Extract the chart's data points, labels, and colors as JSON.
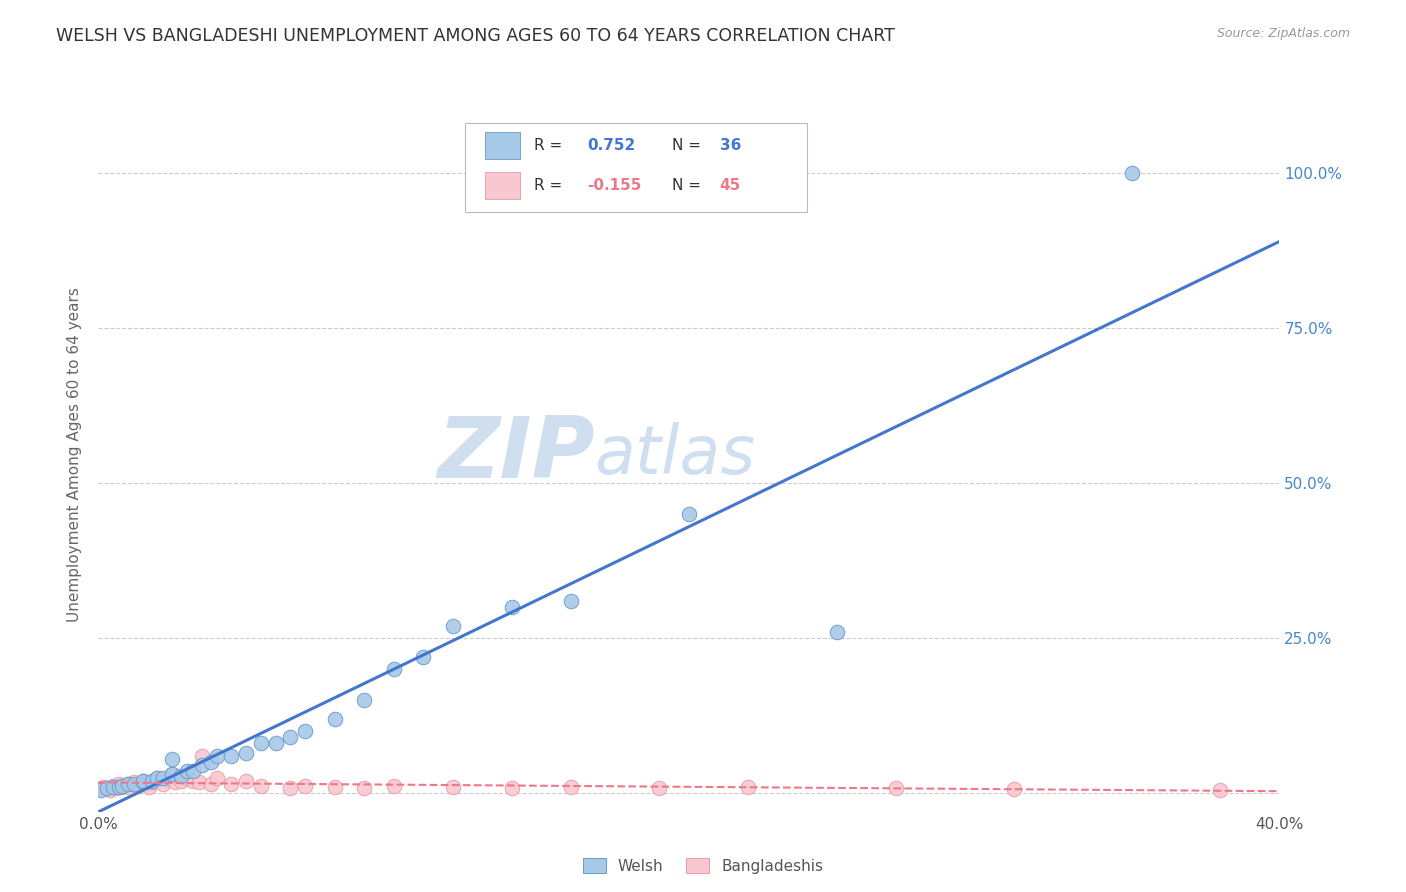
{
  "title": "WELSH VS BANGLADESHI UNEMPLOYMENT AMONG AGES 60 TO 64 YEARS CORRELATION CHART",
  "source": "Source: ZipAtlas.com",
  "ylabel": "Unemployment Among Ages 60 to 64 years",
  "xlim": [
    0.0,
    0.4
  ],
  "ylim": [
    -0.03,
    1.12
  ],
  "xticks": [
    0.0,
    0.1,
    0.2,
    0.3,
    0.4
  ],
  "xtick_labels": [
    "0.0%",
    "",
    "",
    "",
    "40.0%"
  ],
  "yticks": [
    0.0,
    0.25,
    0.5,
    0.75,
    1.0
  ],
  "ytick_labels": [
    "",
    "25.0%",
    "50.0%",
    "75.0%",
    "100.0%"
  ],
  "welsh_color": "#a8c8e8",
  "welsh_edge_color": "#6699cc",
  "bangladeshi_color": "#f8c8d0",
  "bangladeshi_edge_color": "#e899aa",
  "welsh_R": 0.752,
  "welsh_N": 36,
  "bangladeshi_R": -0.155,
  "bangladeshi_N": 45,
  "welsh_line_color": "#4477cc",
  "bangladeshi_line_color": "#ee7788",
  "watermark_top": "ZIP",
  "watermark_bot": "atlas",
  "watermark_color": "#d0dff0",
  "background_color": "#ffffff",
  "grid_color": "#cccccc",
  "right_label_color": "#4488cc",
  "title_color": "#333333",
  "welsh_x": [
    0.001,
    0.003,
    0.005,
    0.007,
    0.008,
    0.01,
    0.012,
    0.015,
    0.015,
    0.018,
    0.02,
    0.022,
    0.025,
    0.025,
    0.028,
    0.03,
    0.032,
    0.035,
    0.038,
    0.04,
    0.045,
    0.05,
    0.055,
    0.06,
    0.065,
    0.07,
    0.08,
    0.09,
    0.1,
    0.11,
    0.12,
    0.14,
    0.16,
    0.2,
    0.25,
    0.35
  ],
  "welsh_y": [
    0.005,
    0.008,
    0.01,
    0.01,
    0.012,
    0.015,
    0.015,
    0.018,
    0.02,
    0.02,
    0.025,
    0.025,
    0.03,
    0.055,
    0.028,
    0.035,
    0.035,
    0.045,
    0.05,
    0.06,
    0.06,
    0.065,
    0.08,
    0.08,
    0.09,
    0.1,
    0.12,
    0.15,
    0.2,
    0.22,
    0.27,
    0.3,
    0.31,
    0.45,
    0.26,
    1.0
  ],
  "bangladeshi_x": [
    0.001,
    0.002,
    0.004,
    0.005,
    0.006,
    0.007,
    0.008,
    0.009,
    0.01,
    0.011,
    0.012,
    0.013,
    0.015,
    0.016,
    0.017,
    0.018,
    0.019,
    0.02,
    0.022,
    0.024,
    0.025,
    0.026,
    0.028,
    0.03,
    0.032,
    0.034,
    0.035,
    0.038,
    0.04,
    0.045,
    0.05,
    0.055,
    0.065,
    0.07,
    0.08,
    0.09,
    0.1,
    0.12,
    0.14,
    0.16,
    0.19,
    0.22,
    0.27,
    0.31,
    0.38
  ],
  "bangladeshi_y": [
    0.008,
    0.01,
    0.005,
    0.012,
    0.008,
    0.015,
    0.01,
    0.012,
    0.015,
    0.008,
    0.018,
    0.012,
    0.02,
    0.015,
    0.01,
    0.018,
    0.02,
    0.025,
    0.015,
    0.022,
    0.03,
    0.018,
    0.02,
    0.025,
    0.02,
    0.018,
    0.06,
    0.015,
    0.025,
    0.015,
    0.02,
    0.012,
    0.008,
    0.012,
    0.01,
    0.008,
    0.012,
    0.01,
    0.008,
    0.01,
    0.008,
    0.01,
    0.008,
    0.006,
    0.005
  ]
}
